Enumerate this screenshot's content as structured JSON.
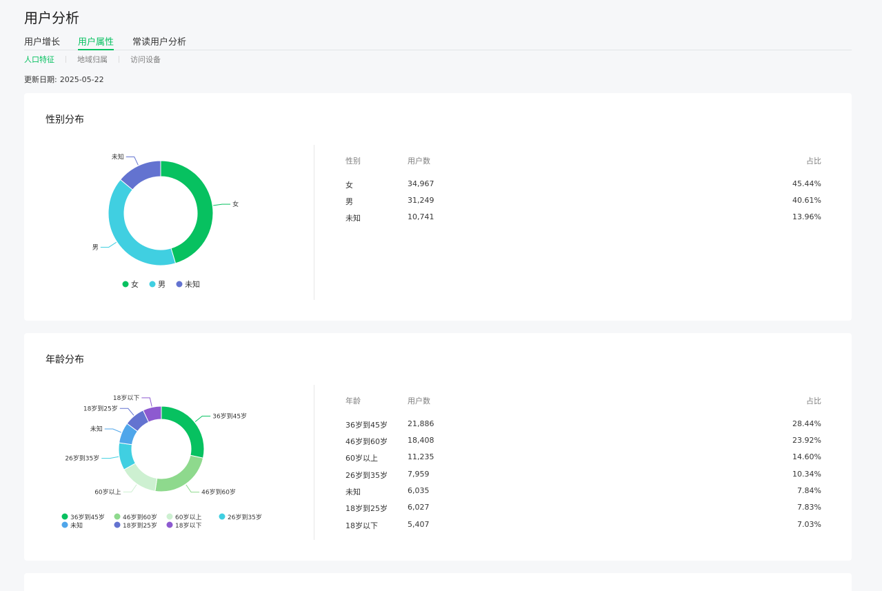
{
  "page": {
    "title": "用户分析"
  },
  "tabs": [
    {
      "label": "用户增长",
      "active": false
    },
    {
      "label": "用户属性",
      "active": true
    },
    {
      "label": "常读用户分析",
      "active": false
    }
  ],
  "subtabs": [
    {
      "label": "人口特征",
      "active": true
    },
    {
      "label": "地域归属",
      "active": false
    },
    {
      "label": "访问设备",
      "active": false
    }
  ],
  "update": {
    "label": "更新日期:",
    "date": "2025-05-22"
  },
  "colors": {
    "accent": "#07c160",
    "female": "#07c160",
    "male": "#40cfe1",
    "unknown": "#6373d0",
    "age_36_45": "#07c160",
    "age_46_60": "#8ed98d",
    "age_60_plus": "#cdf0d1",
    "age_26_35": "#40cfe1",
    "age_unknown": "#4fa6ea",
    "age_18_25": "#6373d0",
    "age_under_18": "#8d5ad0"
  },
  "gender": {
    "title": "性别分布",
    "headers": {
      "category": "性别",
      "users": "用户数",
      "ratio": "占比"
    },
    "rows": [
      {
        "label": "女",
        "users": "34,967",
        "ratio": "45.44%"
      },
      {
        "label": "男",
        "users": "31,249",
        "ratio": "40.61%"
      },
      {
        "label": "未知",
        "users": "10,741",
        "ratio": "13.96%"
      }
    ]
  },
  "age": {
    "title": "年龄分布",
    "headers": {
      "category": "年龄",
      "users": "用户数",
      "ratio": "占比"
    },
    "rows": [
      {
        "label": "36岁到45岁",
        "users": "21,886",
        "ratio": "28.44%"
      },
      {
        "label": "46岁到60岁",
        "users": "18,408",
        "ratio": "23.92%"
      },
      {
        "label": "60岁以上",
        "users": "11,235",
        "ratio": "14.60%"
      },
      {
        "label": "26岁到35岁",
        "users": "7,959",
        "ratio": "10.34%"
      },
      {
        "label": "未知",
        "users": "6,035",
        "ratio": "7.84%"
      },
      {
        "label": "18岁到25岁",
        "users": "6,027",
        "ratio": "7.83%"
      },
      {
        "label": "18岁以下",
        "users": "5,407",
        "ratio": "7.03%"
      }
    ]
  },
  "chart_data": [
    {
      "type": "pie",
      "title": "性别分布",
      "categories": [
        "女",
        "男",
        "未知"
      ],
      "values": [
        34967,
        31249,
        10741
      ],
      "legend": "bottom"
    },
    {
      "type": "pie",
      "title": "年龄分布",
      "categories": [
        "36岁到45岁",
        "46岁到60岁",
        "60岁以上",
        "26岁到35岁",
        "未知",
        "18岁到25岁",
        "18岁以下"
      ],
      "values": [
        21886,
        18408,
        11235,
        7959,
        6035,
        6027,
        5407
      ],
      "legend": "bottom"
    }
  ]
}
